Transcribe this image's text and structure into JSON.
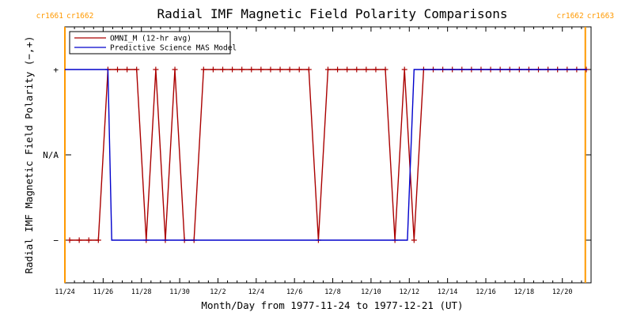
{
  "chart_data": {
    "type": "line",
    "title": "Radial IMF Magnetic Field Polarity Comparisons",
    "xlabel": "Month/Day from 1977-11-24 to 1977-12-21 (UT)",
    "ylabel": "Radial IMF Magnetic Field Polarity (−,+)",
    "x_unit": "days since 1977-11-24 00:00 UT",
    "xlim": [
      0,
      27.5
    ],
    "ylim": [
      -1.5,
      1.5
    ],
    "x_ticks": [
      {
        "x": 0,
        "label": "11/24"
      },
      {
        "x": 2,
        "label": "11/26"
      },
      {
        "x": 4,
        "label": "11/28"
      },
      {
        "x": 6,
        "label": "11/30"
      },
      {
        "x": 8,
        "label": "12/2"
      },
      {
        "x": 10,
        "label": "12/4"
      },
      {
        "x": 12,
        "label": "12/6"
      },
      {
        "x": 14,
        "label": "12/8"
      },
      {
        "x": 16,
        "label": "12/10"
      },
      {
        "x": 18,
        "label": "12/12"
      },
      {
        "x": 20,
        "label": "12/14"
      },
      {
        "x": 22,
        "label": "12/16"
      },
      {
        "x": 24,
        "label": "12/18"
      },
      {
        "x": 26,
        "label": "12/20"
      }
    ],
    "y_ticks": [
      {
        "y": 1,
        "label": "+"
      },
      {
        "y": 0,
        "label": "N/A"
      },
      {
        "y": -1,
        "label": "−"
      }
    ],
    "legend_position": "top-left",
    "carrington": [
      {
        "x": 0,
        "label_left": "cr1661",
        "label_right": "cr1662",
        "color": "#ff9900"
      },
      {
        "x": 27.2,
        "label_left": "cr1662",
        "label_right": "cr1663",
        "color": "#ff9900"
      }
    ],
    "series": [
      {
        "name": "OMNI_M (12-hr avg)",
        "color": "#aa0000",
        "marker": "+",
        "points": [
          [
            0.25,
            -1
          ],
          [
            0.75,
            -1
          ],
          [
            1.25,
            -1
          ],
          [
            1.75,
            -1
          ],
          [
            2.25,
            1
          ],
          [
            2.75,
            1
          ],
          [
            3.25,
            1
          ],
          [
            3.75,
            1
          ],
          [
            4.25,
            -1
          ],
          [
            4.75,
            1
          ],
          [
            5.25,
            -1
          ],
          [
            5.75,
            1
          ],
          [
            6.25,
            -1
          ],
          [
            6.75,
            -1
          ],
          [
            7.25,
            1
          ],
          [
            7.75,
            1
          ],
          [
            8.25,
            1
          ],
          [
            8.75,
            1
          ],
          [
            9.25,
            1
          ],
          [
            9.75,
            1
          ],
          [
            10.25,
            1
          ],
          [
            10.75,
            1
          ],
          [
            11.25,
            1
          ],
          [
            11.75,
            1
          ],
          [
            12.25,
            1
          ],
          [
            12.75,
            1
          ],
          [
            13.25,
            -1
          ],
          [
            13.75,
            1
          ],
          [
            14.25,
            1
          ],
          [
            14.75,
            1
          ],
          [
            15.25,
            1
          ],
          [
            15.75,
            1
          ],
          [
            16.25,
            1
          ],
          [
            16.75,
            1
          ],
          [
            17.25,
            -1
          ],
          [
            17.75,
            1
          ],
          [
            18.25,
            -1
          ],
          [
            18.75,
            1
          ],
          [
            19.25,
            1
          ],
          [
            19.75,
            1
          ],
          [
            20.25,
            1
          ],
          [
            20.75,
            1
          ],
          [
            21.25,
            1
          ],
          [
            21.75,
            1
          ],
          [
            22.25,
            1
          ],
          [
            22.75,
            1
          ],
          [
            23.25,
            1
          ],
          [
            23.75,
            1
          ],
          [
            24.25,
            1
          ],
          [
            24.75,
            1
          ],
          [
            25.25,
            1
          ],
          [
            25.75,
            1
          ],
          [
            26.25,
            1
          ],
          [
            26.75,
            1
          ],
          [
            27.25,
            1
          ]
        ]
      },
      {
        "name": "Predictive Science MAS Model",
        "color": "#0000cc",
        "marker": "",
        "points": [
          [
            0,
            1
          ],
          [
            2.0,
            1
          ],
          [
            2.25,
            1
          ],
          [
            2.45,
            -1
          ],
          [
            17.9,
            -1
          ],
          [
            18.25,
            1
          ],
          [
            27.3,
            1
          ]
        ]
      }
    ]
  }
}
